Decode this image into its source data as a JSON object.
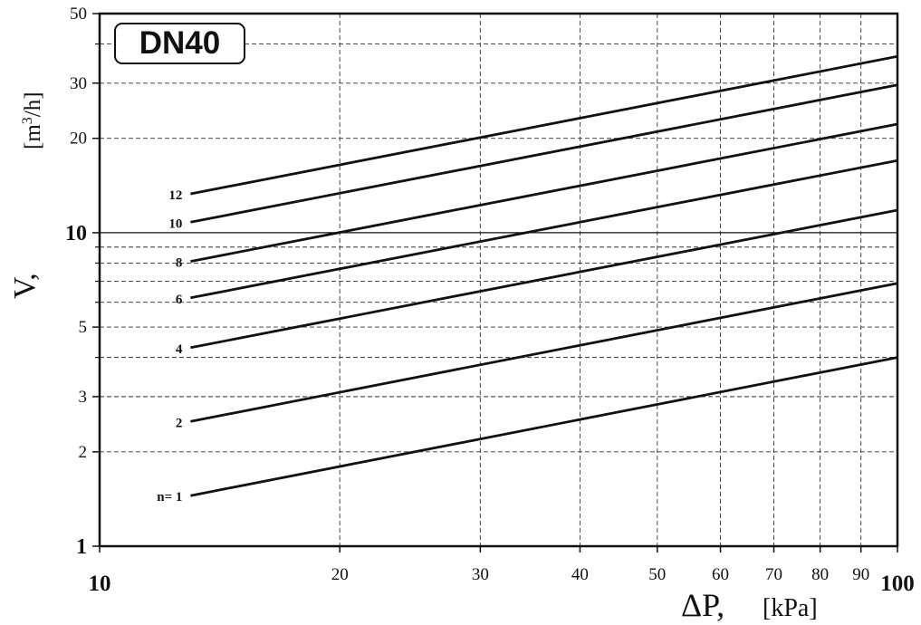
{
  "chart_data": {
    "type": "line",
    "title": "DN40",
    "xlabel": "ΔP,",
    "xlabel_unit": "[kPa]",
    "ylabel": "V,",
    "ylabel_unit": "[m3/h]",
    "x_scale": "log",
    "y_scale": "log",
    "xlim": [
      10,
      100
    ],
    "ylim": [
      1,
      50
    ],
    "x_ticks": [
      10,
      20,
      30,
      40,
      50,
      60,
      70,
      80,
      90,
      100
    ],
    "x_tick_labels": [
      "10",
      "20",
      "30",
      "40",
      "50",
      "60",
      "70",
      "80",
      "90",
      "100"
    ],
    "y_ticks": [
      1,
      2,
      3,
      5,
      10,
      20,
      30,
      50
    ],
    "y_tick_labels": [
      "1",
      "2",
      "3",
      "5",
      "10",
      "20",
      "30",
      "50"
    ],
    "y_minor_gridlines": [
      4,
      6,
      7,
      8,
      9,
      40
    ],
    "grid": true,
    "series": [
      {
        "name": "n= 1",
        "x": [
          13,
          100
        ],
        "y": [
          1.45,
          4.0
        ]
      },
      {
        "name": "2",
        "x": [
          13,
          100
        ],
        "y": [
          2.5,
          6.9
        ]
      },
      {
        "name": "4",
        "x": [
          13,
          100
        ],
        "y": [
          4.3,
          11.8
        ]
      },
      {
        "name": "6",
        "x": [
          13,
          100
        ],
        "y": [
          6.2,
          17.0
        ]
      },
      {
        "name": "8",
        "x": [
          13,
          100
        ],
        "y": [
          8.1,
          22.2
        ]
      },
      {
        "name": "10",
        "x": [
          13,
          100
        ],
        "y": [
          10.8,
          29.6
        ]
      },
      {
        "name": "12",
        "x": [
          13,
          100
        ],
        "y": [
          13.3,
          36.5
        ]
      }
    ]
  }
}
